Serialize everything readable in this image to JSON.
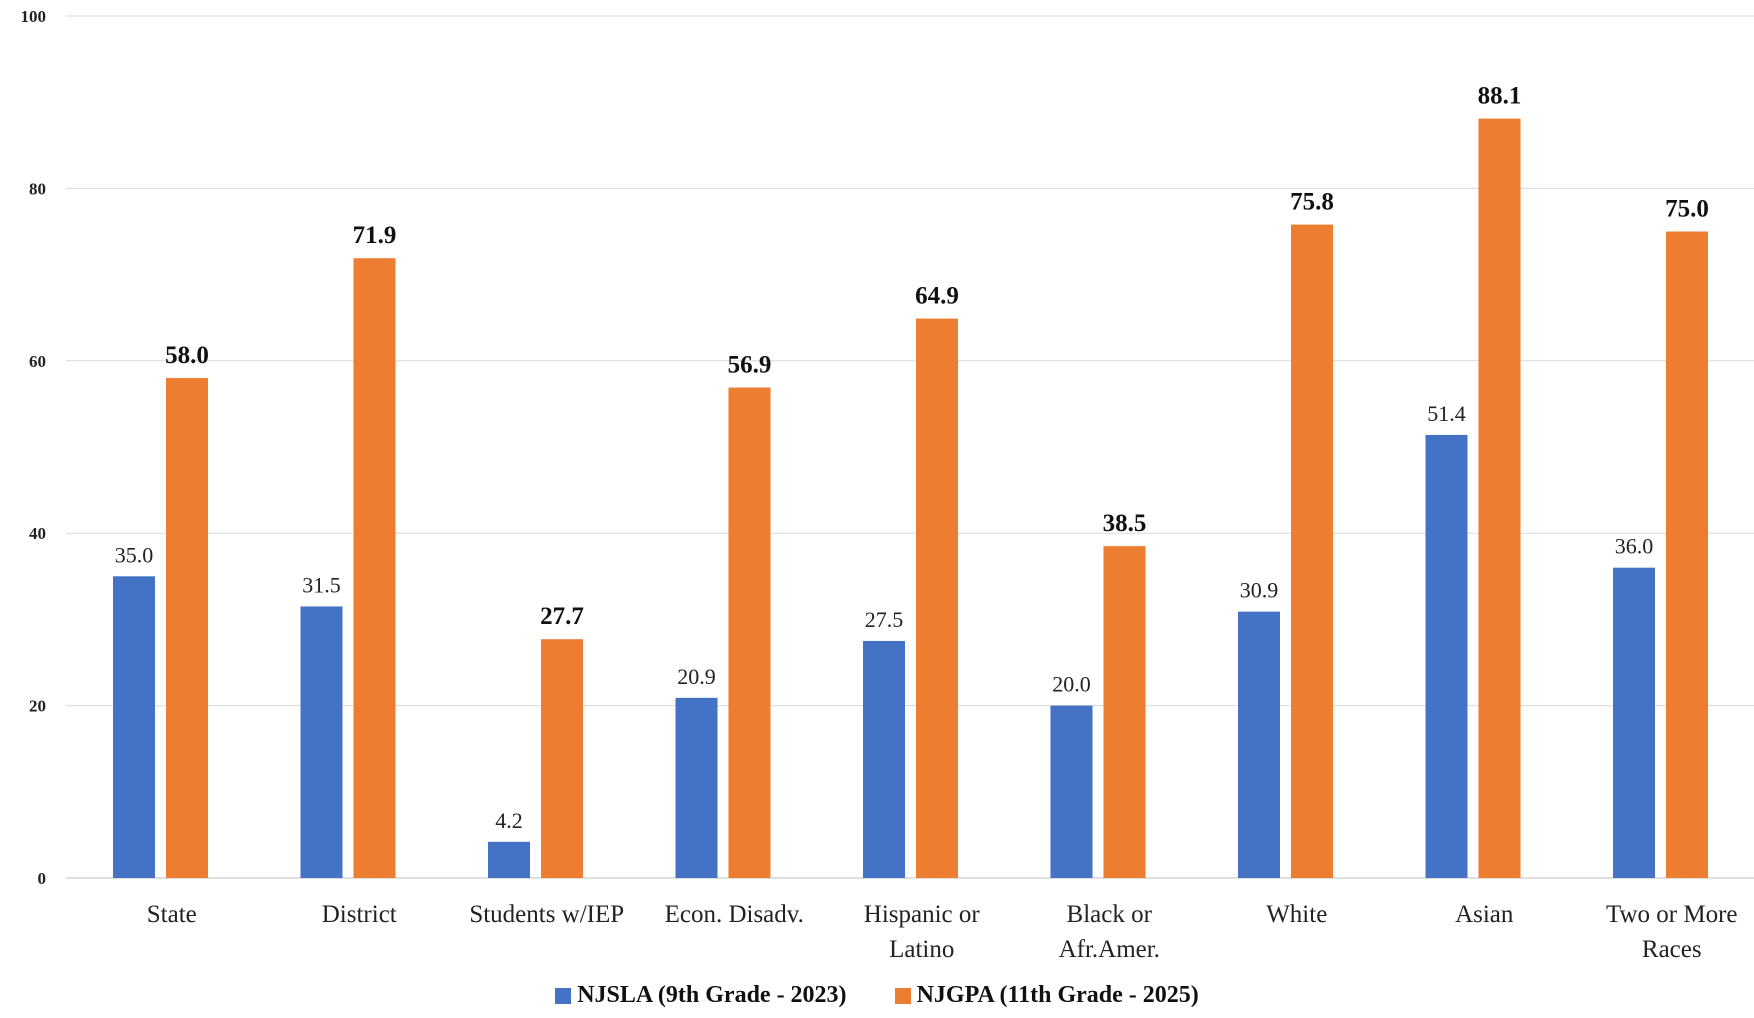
{
  "chart_data": {
    "type": "bar",
    "categories": [
      [
        "State"
      ],
      [
        "District"
      ],
      [
        "Students w/IEP"
      ],
      [
        "Econ. Disadv."
      ],
      [
        "Hispanic or",
        "Latino"
      ],
      [
        "Black or",
        "Afr.Amer."
      ],
      [
        "White"
      ],
      [
        "Asian"
      ],
      [
        "Two or More",
        "Races"
      ]
    ],
    "series": [
      {
        "name": "NJSLA (9th Grade - 2023)",
        "color": "#4472C4",
        "values": [
          35.0,
          31.5,
          4.2,
          20.9,
          27.5,
          20.0,
          30.9,
          51.4,
          36.0
        ],
        "value_labels": [
          "35.0",
          "31.5",
          "4.2",
          "20.9",
          "27.5",
          "20.0",
          "30.9",
          "51.4",
          "36.0"
        ]
      },
      {
        "name": "NJGPA (11th Grade - 2025)",
        "color": "#ED7D31",
        "values": [
          58.0,
          71.9,
          27.7,
          56.9,
          64.9,
          38.5,
          75.8,
          88.1,
          75.0
        ],
        "value_labels": [
          "58.0",
          "71.9",
          "27.7",
          "56.9",
          "64.9",
          "38.5",
          "75.8",
          "88.1",
          "75.0"
        ]
      }
    ],
    "ylim": [
      0,
      100
    ],
    "yticks": [
      "0",
      "20",
      "40",
      "60",
      "80",
      "100"
    ],
    "grid": true,
    "legend_position": "bottom"
  }
}
